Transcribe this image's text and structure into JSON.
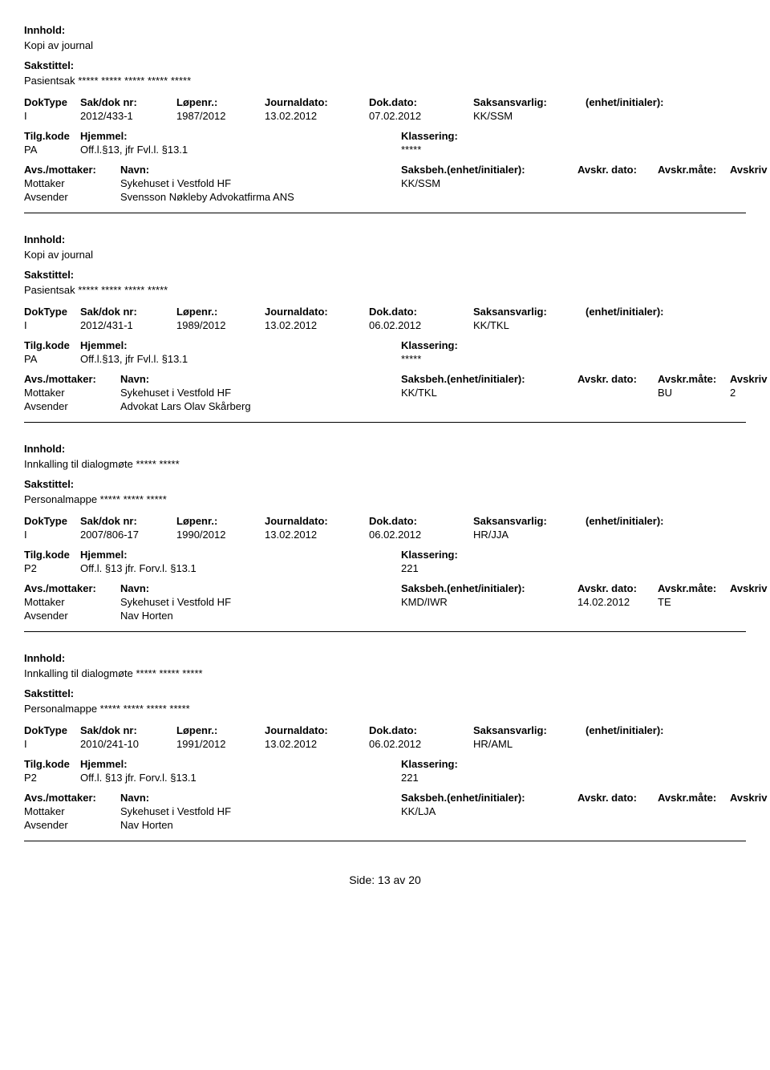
{
  "labels": {
    "innhold": "Innhold:",
    "sakstittel": "Sakstittel:",
    "doktype": "DokType",
    "sakdoknr": "Sak/dok nr:",
    "lopenr": "Løpenr.:",
    "journaldato": "Journaldato:",
    "dokdato": "Dok.dato:",
    "saksansvarlig": "Saksansvarlig:",
    "enhet": "(enhet/initialer):",
    "tilgkode": "Tilg.kode",
    "hjemmel": "Hjemmel:",
    "klassering": "Klassering:",
    "avsmottaker": "Avs./mottaker:",
    "navn": "Navn:",
    "saksbeh": "Saksbeh.",
    "saksbeh_enhet": "(enhet/initialer):",
    "avskrdato": "Avskr. dato:",
    "avskrmate": "Avskr.måte:",
    "avskrivlnr": "Avskriv lnr.:",
    "mottaker": "Mottaker",
    "avsender": "Avsender"
  },
  "entries": [
    {
      "innhold": "Kopi av journal",
      "sakstittel": "Pasientsak ***** ***** ***** ***** *****",
      "doktype": "I",
      "sakdoknr": "2012/433-1",
      "lopenr": "1987/2012",
      "journaldato": "13.02.2012",
      "dokdato": "07.02.2012",
      "saksansvarlig": "KK/SSM",
      "tilgkode": "PA",
      "hjemmel": "Off.l.§13, jfr Fvl.l. §13.1",
      "klassering": "*****",
      "mottaker_navn": "Sykehuset i Vestfold HF",
      "mottaker_saksbeh": "KK/SSM",
      "mottaker_avskrdato": "",
      "mottaker_avskrmate": "",
      "mottaker_avskrivlnr": "",
      "avsender_navn": "Svensson Nøkleby Advokatfirma ANS"
    },
    {
      "innhold": "Kopi av journal",
      "sakstittel": "Pasientsak ***** ***** ***** *****",
      "doktype": "I",
      "sakdoknr": "2012/431-1",
      "lopenr": "1989/2012",
      "journaldato": "13.02.2012",
      "dokdato": "06.02.2012",
      "saksansvarlig": "KK/TKL",
      "tilgkode": "PA",
      "hjemmel": "Off.l.§13, jfr Fvl.l. §13.1",
      "klassering": "*****",
      "mottaker_navn": "Sykehuset i Vestfold HF",
      "mottaker_saksbeh": "KK/TKL",
      "mottaker_avskrdato": "",
      "mottaker_avskrmate": "BU",
      "mottaker_avskrivlnr": "2",
      "avsender_navn": "Advokat Lars Olav Skårberg"
    },
    {
      "innhold": "Innkalling til dialogmøte ***** *****",
      "sakstittel": "Personalmappe ***** ***** *****",
      "doktype": "I",
      "sakdoknr": "2007/806-17",
      "lopenr": "1990/2012",
      "journaldato": "13.02.2012",
      "dokdato": "06.02.2012",
      "saksansvarlig": "HR/JJA",
      "tilgkode": "P2",
      "hjemmel": "Off.l. §13  jfr. Forv.l. §13.1",
      "klassering": "221",
      "mottaker_navn": "Sykehuset i Vestfold HF",
      "mottaker_saksbeh": "KMD/IWR",
      "mottaker_avskrdato": "14.02.2012",
      "mottaker_avskrmate": "TE",
      "mottaker_avskrivlnr": "",
      "avsender_navn": "Nav Horten"
    },
    {
      "innhold": "Innkalling til dialogmøte ***** ***** *****",
      "sakstittel": "Personalmappe ***** ***** ***** *****",
      "doktype": "I",
      "sakdoknr": "2010/241-10",
      "lopenr": "1991/2012",
      "journaldato": "13.02.2012",
      "dokdato": "06.02.2012",
      "saksansvarlig": "HR/AML",
      "tilgkode": "P2",
      "hjemmel": "Off.l. §13  jfr. Forv.l. §13.1",
      "klassering": "221",
      "mottaker_navn": "Sykehuset i Vestfold HF",
      "mottaker_saksbeh": "KK/LJA",
      "mottaker_avskrdato": "",
      "mottaker_avskrmate": "",
      "mottaker_avskrivlnr": "",
      "avsender_navn": "Nav Horten"
    }
  ],
  "footer": {
    "side_label": "Side:",
    "page": "13",
    "av": "av",
    "total": "20"
  }
}
